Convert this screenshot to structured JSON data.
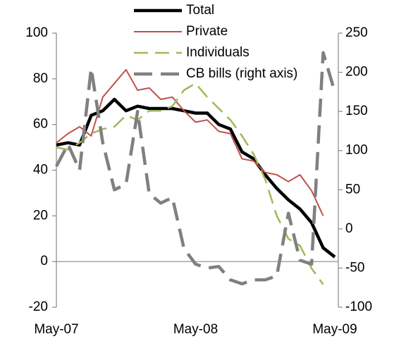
{
  "chart_data": {
    "type": "line",
    "categories": [
      "May-07",
      null,
      null,
      null,
      null,
      null,
      null,
      null,
      null,
      null,
      null,
      null,
      "May-08",
      null,
      null,
      null,
      null,
      null,
      null,
      null,
      null,
      null,
      null,
      null,
      "May-09"
    ],
    "series": [
      {
        "name": "Total",
        "color": "#000000",
        "linestyle": "solid",
        "values": [
          51,
          52,
          51,
          64,
          66,
          71,
          66,
          68,
          67,
          67,
          67,
          66,
          65,
          65,
          60,
          58,
          48,
          45,
          38,
          32,
          27,
          23,
          17,
          6,
          2
        ]
      },
      {
        "name": "Private",
        "color": "#c0504d",
        "linestyle": "solid",
        "values": [
          52,
          56,
          59,
          55,
          72,
          78,
          84,
          75,
          76,
          71,
          72,
          66,
          61,
          62,
          57,
          56,
          45,
          44,
          39,
          38,
          35,
          38,
          31,
          20,
          null
        ]
      },
      {
        "name": "Individuals",
        "color": "#9bbb59",
        "linestyle": "dashed",
        "values": [
          50,
          49,
          52,
          56,
          58,
          59,
          64,
          62,
          66,
          66,
          68,
          75,
          78,
          72,
          67,
          62,
          55,
          47,
          36,
          20,
          10,
          7,
          -3,
          -10,
          null
        ]
      },
      {
        "name": "CB bills (right axis)",
        "color": "#808080",
        "linestyle": "dashed",
        "axis": "y2",
        "values": [
          80,
          108,
          75,
          205,
          110,
          50,
          57,
          150,
          45,
          33,
          40,
          -25,
          -45,
          -50,
          -48,
          -65,
          -70,
          -65,
          -65,
          -60,
          20,
          -40,
          -45,
          225,
          175
        ]
      }
    ],
    "ylim": [
      -20,
      100
    ],
    "yticks": [
      -20,
      0,
      20,
      40,
      60,
      80,
      100
    ],
    "y2lim": [
      -100,
      250
    ],
    "y2ticks": [
      -100,
      -50,
      0,
      50,
      100,
      150,
      200,
      250
    ],
    "legend": "top"
  }
}
